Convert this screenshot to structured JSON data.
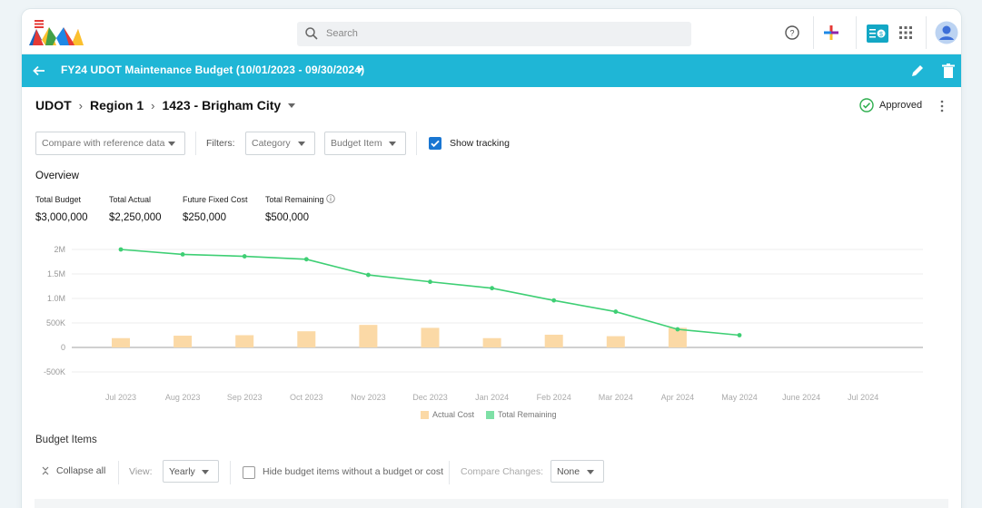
{
  "topbar": {
    "search_placeholder": "Search",
    "logo_icon": "app-logo-icon",
    "help_icon": "help-circle-icon",
    "add_icon": "plus-icon",
    "budget_app_icon": "budget-app-icon",
    "apps_icon": "apps-grid-icon",
    "avatar_icon": "user-avatar-icon"
  },
  "appbar": {
    "title": "FY24 UDOT Maintenance Budget (10/01/2023 - 09/30/2024)",
    "back_icon": "arrow-left-icon",
    "edit_icon": "pencil-icon",
    "delete_icon": "trash-icon",
    "color": "#1fb6d6"
  },
  "breadcrumb": [
    "UDOT",
    "Region 1",
    "1423 - Brigham City"
  ],
  "status": {
    "label": "Approved",
    "color": "#2eae4e"
  },
  "filters": {
    "compare_placeholder": "Compare with reference data",
    "filters_label": "Filters:",
    "category_placeholder": "Category",
    "budget_item_placeholder": "Budget Item",
    "show_tracking_label": "Show tracking",
    "show_tracking_checked": true
  },
  "overview": {
    "heading": "Overview",
    "stats": [
      {
        "label": "Total Budget",
        "value": "$3,000,000"
      },
      {
        "label": "Total Actual",
        "value": "$2,250,000"
      },
      {
        "label": "Future Fixed Cost",
        "value": "$250,000"
      },
      {
        "label": "Total Remaining",
        "value": "$500,000"
      }
    ]
  },
  "chart_data": {
    "type": "bar",
    "categories": [
      "Jul 2023",
      "Aug 2023",
      "Sep 2023",
      "Oct 2023",
      "Nov 2023",
      "Dec 2023",
      "Jan 2024",
      "Feb 2024",
      "Mar 2024",
      "Apr 2024",
      "May 2024",
      "June 2024",
      "Jul 2024"
    ],
    "y_ticks": [
      2000000,
      1500000,
      1000000,
      500000,
      0,
      -500000
    ],
    "y_tick_labels": [
      "2M",
      "1.5M",
      "1.0M",
      "500K",
      "0",
      "-500K"
    ],
    "ylim": [
      -500000,
      2000000
    ],
    "grid": true,
    "legend_position": "bottom",
    "series": [
      {
        "name": "Actual Cost",
        "type": "bar",
        "color": "#fbd9a6",
        "values": [
          190000,
          240000,
          250000,
          330000,
          460000,
          400000,
          190000,
          260000,
          230000,
          400000,
          null,
          null,
          null
        ]
      },
      {
        "name": "Total Remaining",
        "type": "line",
        "color": "#3ecf74",
        "values": [
          2000000,
          1900000,
          1860000,
          1800000,
          1480000,
          1340000,
          1210000,
          960000,
          730000,
          370000,
          250000,
          null,
          null
        ]
      }
    ]
  },
  "budget_items": {
    "heading": "Budget Items",
    "collapse_label": "Collapse all",
    "view_label": "View:",
    "view_value": "Yearly",
    "hide_label": "Hide budget items without a budget or cost",
    "compare_changes_label": "Compare Changes:",
    "compare_changes_value": "None"
  }
}
